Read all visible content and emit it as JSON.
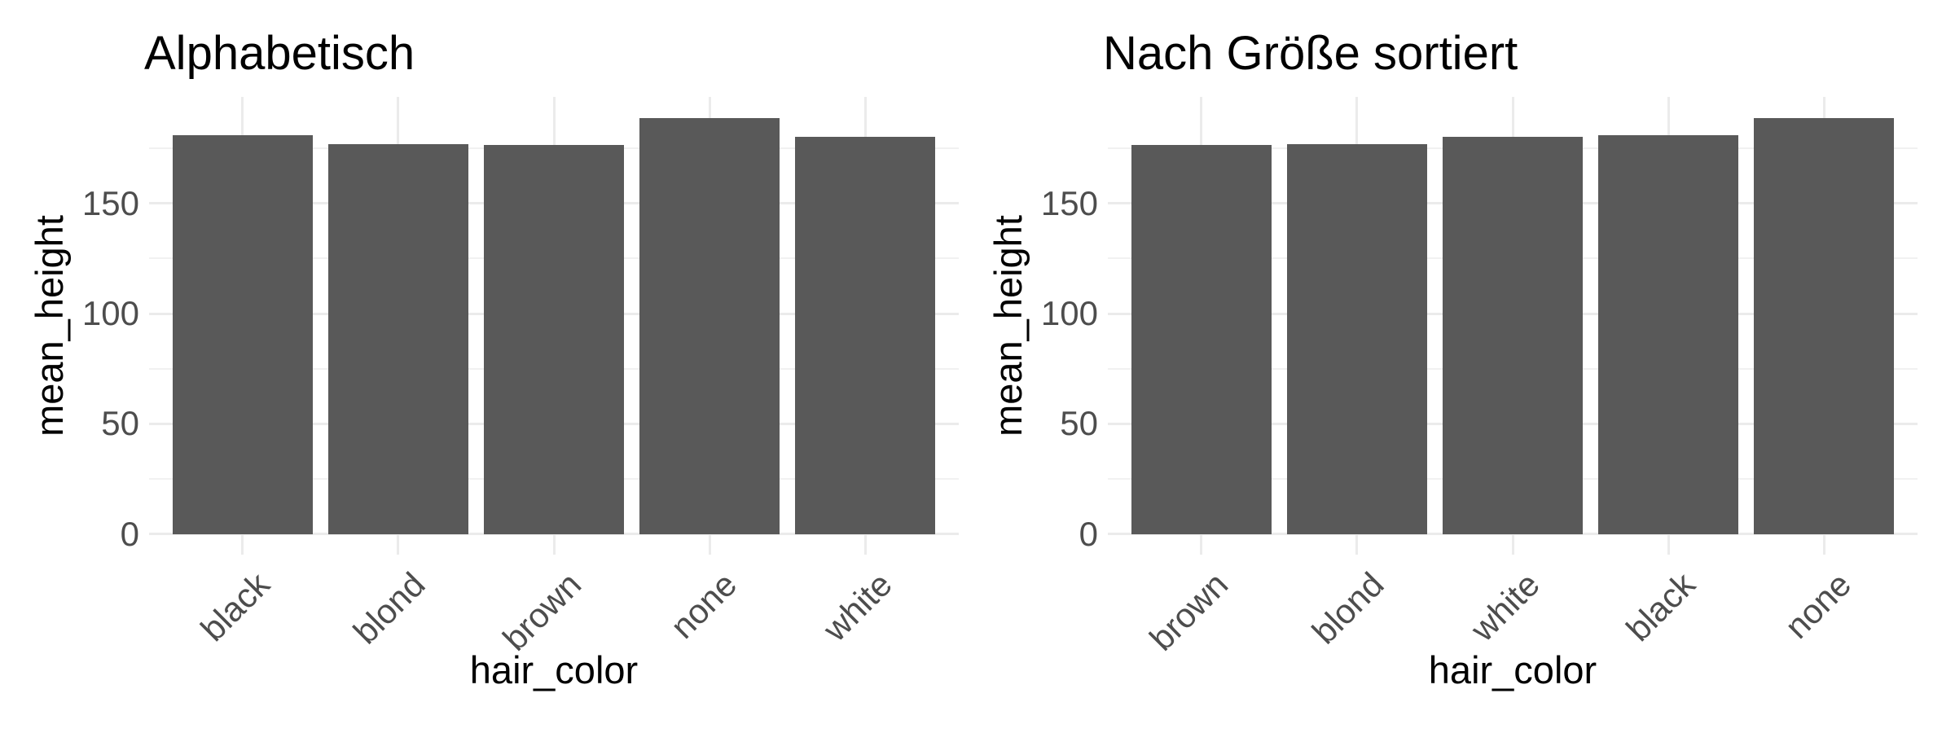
{
  "figure": {
    "background": "#FFFFFF"
  },
  "colors": {
    "bar_fill": "#595959",
    "grid_major": "#EBEBEB",
    "grid_minor": "#F1F1F1",
    "tick_label_text": "#4D4D4D",
    "title_text": "#000000"
  },
  "chart_data": [
    {
      "type": "bar",
      "title": "Alphabetisch",
      "xlabel": "hair_color",
      "ylabel": "mean_height",
      "categories": [
        "black",
        "blond",
        "brown",
        "none",
        "white"
      ],
      "values": [
        180.8,
        176.9,
        176.4,
        188.6,
        180.3
      ],
      "yticks": [
        0,
        50,
        100,
        150
      ],
      "yticks_minor": [
        25,
        75,
        125,
        175
      ],
      "ylim": [
        -9.3,
        198.3
      ],
      "grid": "on",
      "legend": "none",
      "bar_color": "#595959"
    },
    {
      "type": "bar",
      "title": "Nach Größe sortiert",
      "xlabel": "hair_color",
      "ylabel": "mean_height",
      "categories": [
        "brown",
        "blond",
        "white",
        "black",
        "none"
      ],
      "values": [
        176.4,
        176.9,
        180.3,
        180.8,
        188.6
      ],
      "yticks": [
        0,
        50,
        100,
        150
      ],
      "yticks_minor": [
        25,
        75,
        125,
        175
      ],
      "ylim": [
        -9.3,
        198.3
      ],
      "grid": "on",
      "legend": "none",
      "bar_color": "#595959"
    }
  ]
}
